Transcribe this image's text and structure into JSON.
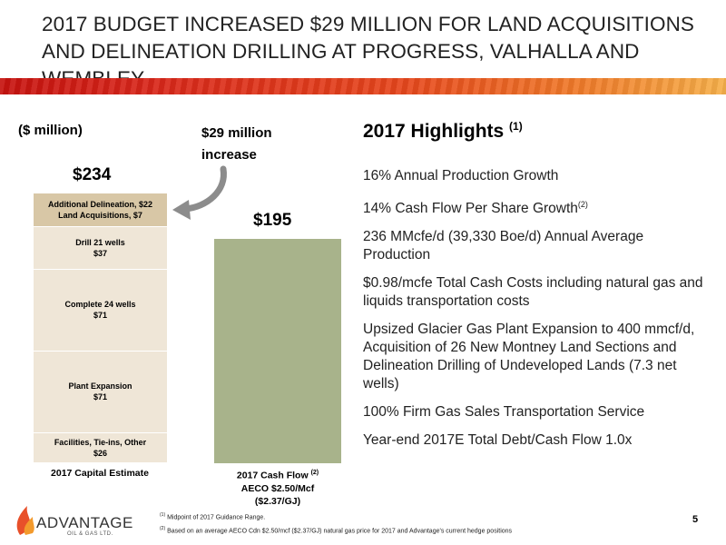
{
  "title": {
    "line1": "2017 BUDGET INCREASED $29 MILLION FOR LAND ACQUISITIONS",
    "line2": "AND DELINEATION DRILLING AT PROGRESS, VALHALLA AND WEMBLEY"
  },
  "chart_labels": {
    "unit": "($ million)",
    "increase_line1": "$29 million",
    "increase_line2": "increase",
    "total_capital": "$234",
    "total_cashflow": "$195",
    "x_capital": "2017 Capital Estimate",
    "x_cashflow_line1": "2017 Cash Flow",
    "x_cashflow_sup": "(2)",
    "x_cashflow_line2": "AECO $2.50/Mcf",
    "x_cashflow_line3": "($2.37/GJ)"
  },
  "chart_data": {
    "type": "bar",
    "categories": [
      "2017 Capital Estimate",
      "2017 Cash Flow"
    ],
    "ylim": [
      0,
      234
    ],
    "stacked_segments": [
      {
        "line1": "Additional Delineation, $22",
        "line2": "Land Acquisitions, $7",
        "value": 29,
        "color": "#d8c7a6"
      },
      {
        "line1": "Drill 21 wells",
        "line2": "$37",
        "value": 37,
        "color": "#efe6d7"
      },
      {
        "line1": "Complete 24 wells",
        "line2": "$71",
        "value": 71,
        "color": "#efe6d7"
      },
      {
        "line1": "Plant Expansion",
        "line2": "$71",
        "value": 71,
        "color": "#efe6d7"
      },
      {
        "line1": "Facilities, Tie-ins, Other",
        "line2": "$26",
        "value": 26,
        "color": "#efe6d7"
      }
    ],
    "cash_flow": {
      "value": 195,
      "color": "#a8b38b"
    }
  },
  "highlights": {
    "title": "2017 Highlights",
    "title_sup": "(1)",
    "items": [
      {
        "text": "16% Annual Production Growth"
      },
      {
        "text": "14% Cash Flow Per Share Growth",
        "sup": "(2)"
      },
      {
        "text": "236 MMcfe/d (39,330 Boe/d) Annual Average Production"
      },
      {
        "text": "$0.98/mcfe Total Cash Costs including natural gas and liquids transportation costs"
      },
      {
        "text": "Upsized Glacier Gas Plant Expansion to 400 mmcf/d, Acquisition of 26 New Montney Land Sections and Delineation Drilling of Undeveloped Lands (7.3 net wells)"
      },
      {
        "text": "100% Firm Gas Sales Transportation Service"
      },
      {
        "text": "Year-end 2017E Total Debt/Cash Flow 1.0x"
      }
    ]
  },
  "footnotes": [
    {
      "sup": "(1)",
      "text": "Midpoint of 2017 Guidance Range."
    },
    {
      "sup": "(2)",
      "text": "Based on an average AECO Cdn $2.50/mcf ($2.37/GJ) natural gas price for 2017 and Advantage's current hedge positions"
    }
  ],
  "logo": {
    "name": "ADVANTAGE",
    "sub": "OIL & GAS LTD."
  },
  "page_number": "5",
  "colors": {
    "band_red": "#c7130f",
    "band_orange": "#f6b04a",
    "arrow_grey": "#8c8c8c"
  }
}
